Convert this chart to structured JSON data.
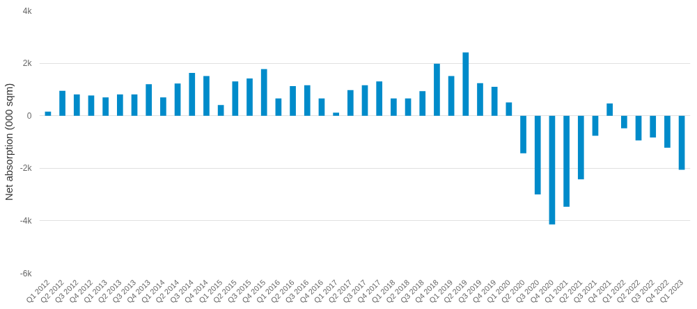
{
  "chart_data": {
    "type": "bar",
    "ylabel": "Net absorption (000 sqm)",
    "categories": [
      "Q1 2012",
      "Q2 2012",
      "Q3 2012",
      "Q4 2012",
      "Q1 2013",
      "Q2 2013",
      "Q3 2013",
      "Q4 2013",
      "Q1 2014",
      "Q2 2014",
      "Q3 2014",
      "Q4 2014",
      "Q1 2015",
      "Q2 2015",
      "Q3 2015",
      "Q4 2015",
      "Q1 2016",
      "Q2 2016",
      "Q3 2016",
      "Q4 2016",
      "Q1 2017",
      "Q2 2017",
      "Q3 2017",
      "Q4 2017",
      "Q1 2018",
      "Q2 2018",
      "Q3 2018",
      "Q4 2018",
      "Q1 2019",
      "Q2 2019",
      "Q3 2019",
      "Q4 2019",
      "Q1 2020",
      "Q2 2020",
      "Q3 2020",
      "Q4 2020",
      "Q1 2021",
      "Q2 2021",
      "Q3 2021",
      "Q4 2021",
      "Q1 2022",
      "Q2 2022",
      "Q3 2022",
      "Q4 2022",
      "Q1 2023"
    ],
    "values": [
      0.16,
      0.95,
      0.81,
      0.77,
      0.7,
      0.81,
      0.81,
      1.2,
      0.7,
      1.23,
      1.63,
      1.51,
      0.41,
      1.31,
      1.42,
      1.78,
      0.66,
      1.13,
      1.16,
      0.66,
      0.12,
      0.98,
      1.16,
      1.31,
      0.66,
      0.66,
      0.94,
      1.98,
      1.51,
      2.41,
      1.24,
      1.1,
      0.51,
      -1.43,
      -3.0,
      -4.14,
      -3.47,
      -2.42,
      -0.76,
      0.47,
      -0.48,
      -0.94,
      -0.83,
      -1.22,
      -2.06
    ],
    "color": "#008bca",
    "ylim": [
      -6,
      4
    ],
    "yticks": [
      {
        "value": -6,
        "label": "-6k"
      },
      {
        "value": -4,
        "label": "-4k"
      },
      {
        "value": -2,
        "label": "-2k"
      },
      {
        "value": 0,
        "label": "0"
      },
      {
        "value": 2,
        "label": "2k"
      },
      {
        "value": 4,
        "label": "4k"
      }
    ],
    "grid": "y"
  }
}
